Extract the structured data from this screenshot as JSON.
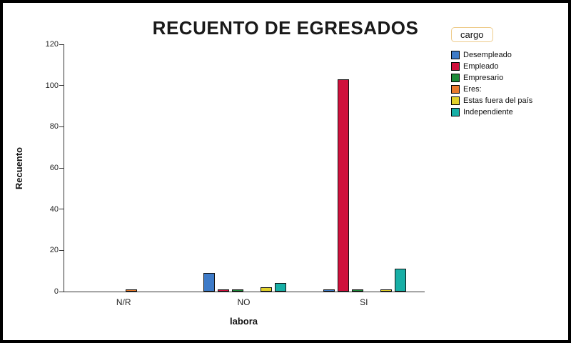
{
  "title": "RECUENTO DE EGRESADOS",
  "chart_data": {
    "type": "bar",
    "title": "RECUENTO DE EGRESADOS",
    "xlabel": "labora",
    "ylabel": "Recuento",
    "legend_title": "cargo",
    "legend_position": "top-right",
    "grid": false,
    "categories": [
      "N/R",
      "NO",
      "SI"
    ],
    "yticks": [
      0,
      20,
      40,
      60,
      80,
      100,
      120
    ],
    "ylim": [
      0,
      120
    ],
    "series": [
      {
        "name": "Desempleado",
        "color": "#3E7BC8",
        "values": [
          0,
          9,
          1
        ]
      },
      {
        "name": "Empleado",
        "color": "#D0103C",
        "values": [
          0,
          1,
          103
        ]
      },
      {
        "name": "Empresario",
        "color": "#1E8C3A",
        "values": [
          0,
          1,
          1
        ]
      },
      {
        "name": "Eres:",
        "color": "#E87A2C",
        "values": [
          1,
          0,
          0
        ]
      },
      {
        "name": "Estas fuera del país",
        "color": "#E2D22C",
        "values": [
          0,
          2,
          1
        ]
      },
      {
        "name": "Independiente",
        "color": "#17AFA6",
        "values": [
          0,
          4,
          11
        ]
      }
    ]
  }
}
